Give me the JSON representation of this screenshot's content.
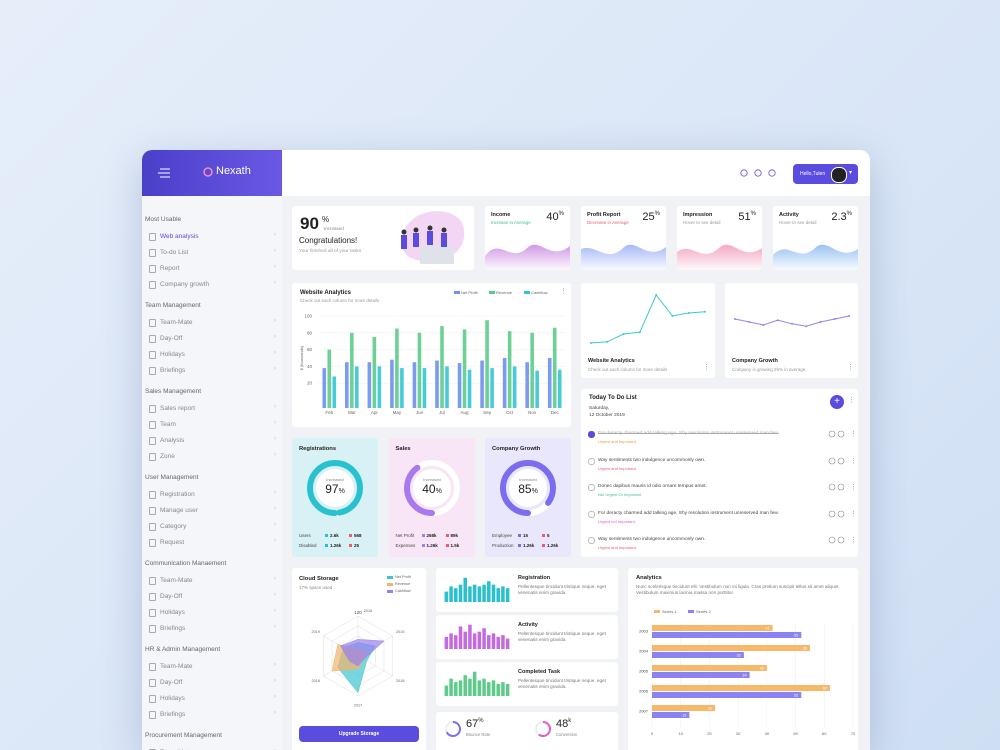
{
  "brand": "Nexath",
  "header": {
    "user": "Hello,Tulen"
  },
  "sidebar": [
    {
      "title": "Most Usable",
      "items": [
        "Web analysis",
        "To-do List",
        "Report",
        "Company growth"
      ]
    },
    {
      "title": "Team Management",
      "items": [
        "Team-Mate",
        "Day-Off",
        "Holidays",
        "Briefings"
      ]
    },
    {
      "title": "Sales Management",
      "items": [
        "Sales report",
        "Team",
        "Analysis",
        "Zone"
      ]
    },
    {
      "title": "User Management",
      "items": [
        "Registration",
        "Manage user",
        "Category",
        "Request"
      ]
    },
    {
      "title": "Communication Manaement",
      "items": [
        "Team-Mate",
        "Day-Off",
        "Holidays",
        "Briefings"
      ]
    },
    {
      "title": "HR & Admin Management",
      "items": [
        "Team-Mate",
        "Day-Off",
        "Holidays",
        "Briefings"
      ]
    },
    {
      "title": "Procurement Management",
      "items": [
        "Team-Mate"
      ]
    }
  ],
  "welcome": {
    "value": 90,
    "unit": "%",
    "note": "Increased",
    "title": "Congratulations!",
    "text": "Your finished all of your tasks"
  },
  "stats": [
    {
      "title": "Income",
      "value": 40,
      "unit": "%",
      "note": "Increase in Average",
      "color": "#c77fe0",
      "note_color": "#3ec28f"
    },
    {
      "title": "Profit Report",
      "value": 25,
      "unit": "%",
      "note": "Decrease in Average",
      "color": "#8fa8f5",
      "note_color": "#ef5a6f"
    },
    {
      "title": "Impression",
      "value": 51,
      "unit": "%",
      "note": "Hover to see detail",
      "color": "#f291b5",
      "note_color": "#999999"
    },
    {
      "title": "Activity",
      "value": 2.3,
      "unit": "%",
      "note": "Hover to see detail",
      "color": "#7fb4f0",
      "note_color": "#999999"
    }
  ],
  "website_analytics": {
    "title": "Website Analytics",
    "subtitle": "Check out each column for more details",
    "y_label": "$ (thousands)",
    "categories": [
      "Feb",
      "Mar",
      "Apr",
      "May",
      "Jun",
      "Jul",
      "Aug",
      "Sep",
      "Oct",
      "Nov",
      "Dec"
    ],
    "series": [
      {
        "name": "Net Profit",
        "color": "#6f8ff0",
        "values": [
          38,
          45,
          45,
          48,
          45,
          47,
          44,
          47,
          50,
          45,
          50
        ]
      },
      {
        "name": "Revenue",
        "color": "#5dcc8b",
        "values": [
          60,
          80,
          75,
          85,
          80,
          88,
          84,
          95,
          82,
          80,
          86
        ]
      },
      {
        "name": "Cashflow",
        "color": "#33c5d4",
        "values": [
          28,
          40,
          40,
          38,
          38,
          40,
          36,
          38,
          40,
          35,
          36
        ]
      }
    ],
    "ylim": [
      0,
      100
    ],
    "yticks": [
      20,
      40,
      60,
      80,
      100
    ]
  },
  "trend_cards": [
    {
      "title": "Website Analytics",
      "subtitle": "Check out each column for more details",
      "color": "#3fc6cf",
      "values": [
        10,
        12,
        25,
        28,
        90,
        55,
        60,
        62
      ],
      "ylim": [
        0,
        100
      ]
    },
    {
      "title": "Company Growth",
      "subtitle": "Company is growing 25% in average",
      "color": "#9b7ff0",
      "values": [
        50,
        45,
        40,
        48,
        42,
        38,
        45,
        50,
        55
      ],
      "ylim": [
        0,
        100
      ]
    }
  ],
  "todo": {
    "title": "Today To Do List",
    "day": "Saturday,",
    "date": "12 October 2019",
    "items": [
      {
        "text": "For deracty charmed add talking age. Shy resolution instrument unreserved man few.",
        "tag": "Urgent and Important",
        "tag_color": "#f29c38",
        "done": true
      },
      {
        "text": "Way sentiments two indulgence uncommonly own.",
        "tag": "Urgent and Important",
        "tag_color": "#ef5a6f",
        "done": false
      },
      {
        "text": "Donec dapibus mauris id odio ornare tempus amet.",
        "tag": "Not Urgent Or Important",
        "tag_color": "#3ec28f",
        "done": false
      },
      {
        "text": "For deracty charmed add talking age. Shy resolution instrument unreserved man few.",
        "tag": "Urgent not Important",
        "tag_color": "#e05ad0",
        "done": false
      },
      {
        "text": "Way sentiments two indulgence uncommonly own.",
        "tag": "Urgent and Important",
        "tag_color": "#ef5a6f",
        "done": false
      }
    ]
  },
  "gauges": [
    {
      "title": "Registrations",
      "value": 97,
      "unit": "%",
      "note": "Increased",
      "color": "#29c0cf",
      "bg": "#d7f1f4",
      "rows": [
        {
          "label": "Users",
          "a": "2.6k",
          "b": "568"
        },
        {
          "label": "Disabled",
          "a": "1.26k",
          "b": "25"
        }
      ]
    },
    {
      "title": "Sales",
      "value": 40,
      "unit": "%",
      "note": "Increased",
      "color": "#a77af0",
      "bg": "#f8e5f6",
      "rows": [
        {
          "label": "Net Profit",
          "a": "268k",
          "b": "89k"
        },
        {
          "label": "Expenses",
          "a": "1.26k",
          "b": "1.5k"
        }
      ]
    },
    {
      "title": "Company Growth",
      "value": 85,
      "unit": "%",
      "note": "Increased",
      "color": "#7a6df0",
      "bg": "#e9e7fb",
      "rows": [
        {
          "label": "Employee",
          "a": "15",
          "b": "5"
        },
        {
          "label": "Production",
          "a": "1.26k",
          "b": "1.26k"
        }
      ]
    }
  ],
  "cloud": {
    "title": "Cloud Storage",
    "subtitle": "17% space used",
    "button": "Upgrade Storage",
    "axes": [
      "2016",
      "2015",
      "2018",
      "2017",
      "2018",
      "2019"
    ],
    "rlim": [
      0,
      120
    ],
    "rticks": [
      120
    ],
    "series": [
      {
        "name": "Net Profit",
        "color": "#3fc6cf",
        "values": [
          40,
          60,
          30,
          110,
          70,
          50
        ]
      },
      {
        "name": "Revenue",
        "color": "#f2b36b",
        "values": [
          20,
          30,
          20,
          40,
          90,
          70
        ]
      },
      {
        "name": "Cashflow",
        "color": "#9b7ff0",
        "values": [
          50,
          90,
          20,
          30,
          30,
          60
        ]
      }
    ]
  },
  "mini": [
    {
      "title": "Registration",
      "text": "Pellentesque tincidunt tristique neque, eget venenatis enim gravida.",
      "color": "#29c0cf",
      "values": [
        6,
        9,
        8,
        10,
        14,
        9,
        10,
        9,
        10,
        12,
        10,
        8,
        9,
        8
      ],
      "ylim": [
        0,
        15
      ]
    },
    {
      "title": "Activity",
      "text": "Pellentesque tincidunt tristique neque, eget venenatis enim gravida.",
      "color": "#c36ae0",
      "values": [
        7,
        9,
        8,
        13,
        10,
        14,
        9,
        10,
        12,
        8,
        9,
        7,
        8,
        6
      ],
      "ylim": [
        0,
        15
      ]
    },
    {
      "title": "Completed Task",
      "text": "Pellentesque tincidunt tristique neque, eget venenatis enim gravida.",
      "color": "#5dcc8b",
      "values": [
        6,
        10,
        8,
        9,
        12,
        10,
        14,
        9,
        10,
        8,
        9,
        7,
        8,
        7
      ],
      "ylim": [
        0,
        15
      ]
    }
  ],
  "kpis": [
    {
      "value": 67,
      "unit": "%",
      "label": "Bounce Rate",
      "color": "#7a6df0"
    },
    {
      "value": 48,
      "unit": "k",
      "label": "Conversion",
      "color": "#e05ad0"
    }
  ],
  "analytics": {
    "title": "Analytics",
    "text": "Nunc scelerisque tincidunt elit. Vestibulum non mi ligula. Cras pretium suscipit tellus sit amet aliquet. Vestibulum maximus lacinia massa non porttitor.",
    "categories": [
      "2003",
      "2004",
      "2005",
      "2006",
      "2007"
    ],
    "series": [
      {
        "name": "Series 1",
        "color": "#f7b869",
        "values": [
          42,
          55,
          40,
          62,
          22
        ]
      },
      {
        "name": "Series 2",
        "color": "#8b83f2",
        "values": [
          52,
          32,
          34,
          52,
          13
        ]
      }
    ],
    "xlim": [
      0,
      70
    ],
    "xticks": [
      0,
      10,
      20,
      30,
      40,
      50,
      60,
      70
    ]
  }
}
